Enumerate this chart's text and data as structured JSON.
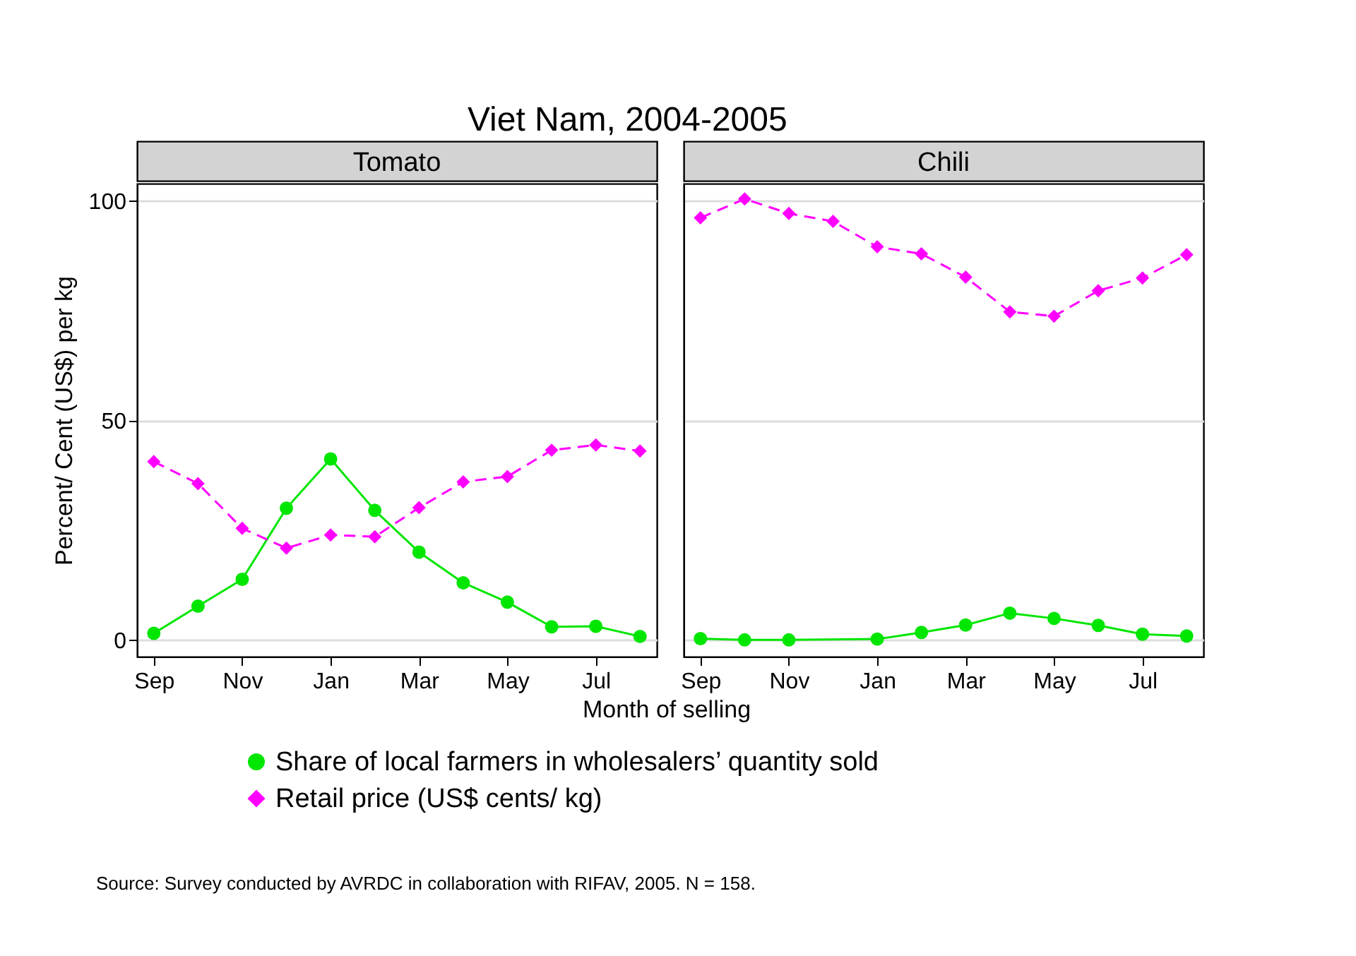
{
  "chart_data": [
    {
      "type": "line",
      "title": "Viet Nam, 2004-2005",
      "subtitle": "Tomato",
      "xlabel": "Month of selling",
      "ylabel": "Percent/ Cent (US$) per kg",
      "categories": [
        "Sep",
        null,
        "Nov",
        null,
        "Jan",
        null,
        "Mar",
        null,
        "May",
        null,
        "Jul",
        null
      ],
      "series": [
        {
          "name": "Share of local farmers in wholesalers’ quantity sold",
          "color": "#00e600",
          "marker": "circle",
          "line_style": "solid",
          "values": [
            1.6,
            7.8,
            13.9,
            30.1,
            41.3,
            29.6,
            20.1,
            13.1,
            8.7,
            3.1,
            3.2,
            0.9
          ]
        },
        {
          "name": "Retail price (US$ cents/ kg)",
          "color": "#ff00ff",
          "marker": "diamond",
          "line_style": "dashed",
          "values": [
            40.7,
            35.7,
            25.5,
            21.0,
            24.0,
            23.6,
            30.2,
            36.1,
            37.3,
            43.3,
            44.5,
            43.1
          ]
        }
      ],
      "ylim": [
        -3.7,
        104
      ],
      "yticks": [
        0,
        50,
        100
      ],
      "grid": "y",
      "legend": "bottom",
      "annotations": [
        "Source: Survey conducted by AVRDC in collaboration with RIFAV, 2005. N = 158."
      ]
    },
    {
      "type": "line",
      "subtitle": "Chili",
      "categories": [
        "Sep",
        null,
        "Nov",
        null,
        "Jan",
        null,
        "Mar",
        null,
        "May",
        null,
        "Jul",
        null
      ],
      "series": [
        {
          "name": "Share of local farmers in wholesalers’ quantity sold",
          "color": "#00e600",
          "marker": "circle",
          "line_style": "solid",
          "values": [
            0.4,
            0.1,
            0.1,
            null,
            0.3,
            1.8,
            3.5,
            6.2,
            5.0,
            3.4,
            1.4,
            1.0
          ]
        },
        {
          "name": "Retail price (US$ cents/ kg)",
          "color": "#ff00ff",
          "marker": "diamond",
          "line_style": "dashed",
          "values": [
            96.2,
            100.5,
            97.2,
            95.4,
            89.6,
            88.0,
            82.7,
            74.8,
            73.8,
            79.6,
            82.5,
            87.8
          ]
        }
      ],
      "ylim": [
        -3.7,
        104
      ],
      "yticks": [
        0,
        50,
        100
      ],
      "grid": "y",
      "tick_labels": "x"
    }
  ]
}
